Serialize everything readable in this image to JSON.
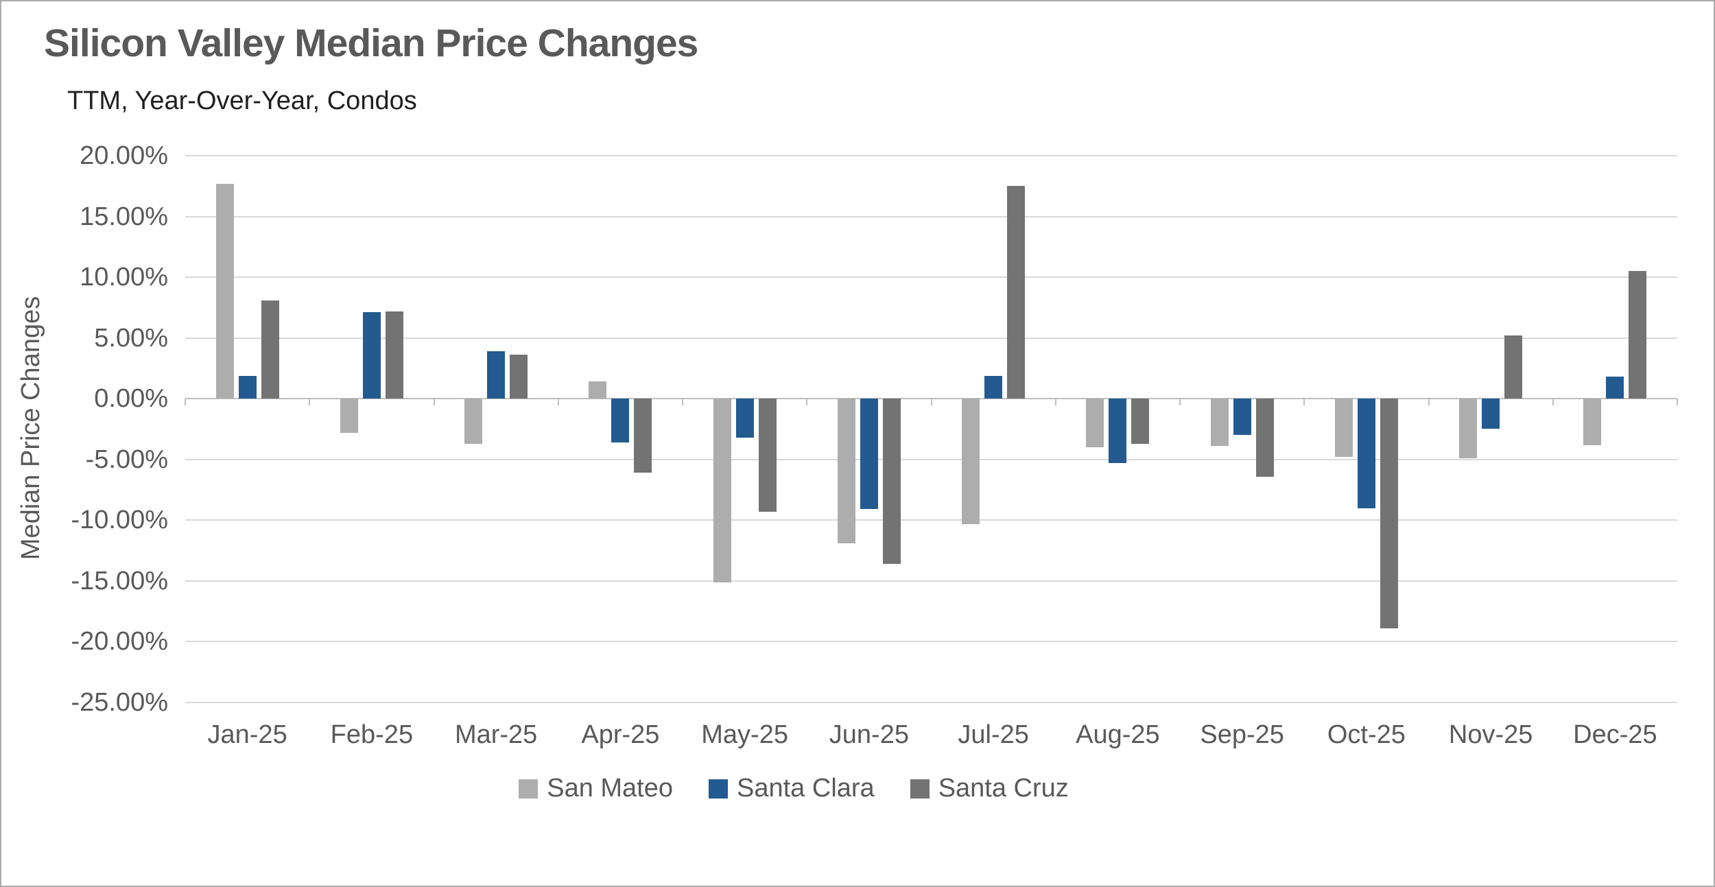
{
  "chart_data": {
    "type": "bar",
    "title": "Silicon Valley Median Price Changes",
    "subtitle": "TTM, Year-Over-Year, Condos",
    "xlabel": "",
    "ylabel": "Median Price Changes",
    "categories": [
      "Jan-25",
      "Feb-25",
      "Mar-25",
      "Apr-25",
      "May-25",
      "Jun-25",
      "Jul-25",
      "Aug-25",
      "Sep-25",
      "Oct-25",
      "Nov-25",
      "Dec-25"
    ],
    "series": [
      {
        "name": "San Mateo",
        "color": "#ADADAD",
        "values": [
          17.7,
          -2.8,
          -3.7,
          1.4,
          -15.1,
          -11.9,
          -10.3,
          -4.0,
          -3.9,
          -4.8,
          -4.9,
          -3.8
        ]
      },
      {
        "name": "Santa Clara",
        "color": "#235B91",
        "values": [
          1.9,
          7.1,
          3.9,
          -3.6,
          -3.2,
          -9.1,
          1.9,
          -5.3,
          -3.0,
          -9.0,
          -2.5,
          1.8
        ]
      },
      {
        "name": "Santa Cruz",
        "color": "#737373",
        "values": [
          8.1,
          7.2,
          3.6,
          -6.1,
          -9.3,
          -13.6,
          17.5,
          -3.7,
          -6.4,
          -18.9,
          5.2,
          10.5
        ]
      }
    ],
    "ylim": [
      -25,
      20
    ],
    "y_ticks": [
      {
        "value": 20,
        "label": "20.00%"
      },
      {
        "value": 15,
        "label": "15.00%"
      },
      {
        "value": 10,
        "label": "10.00%"
      },
      {
        "value": 5,
        "label": "5.00%"
      },
      {
        "value": 0,
        "label": "0.00%"
      },
      {
        "value": -5,
        "label": "-5.00%"
      },
      {
        "value": -10,
        "label": "-10.00%"
      },
      {
        "value": -15,
        "label": "-15.00%"
      },
      {
        "value": -20,
        "label": "-20.00%"
      },
      {
        "value": -25,
        "label": "-25.00%"
      }
    ],
    "grid": "horizontal",
    "legend_position": "bottom",
    "style": {
      "gridline_color": "#D9D9D9",
      "axis_line_color": "#BFBFBF",
      "text_color": "#595959",
      "title_color": "#595959",
      "subtitle_color": "#1f1f1f"
    }
  }
}
